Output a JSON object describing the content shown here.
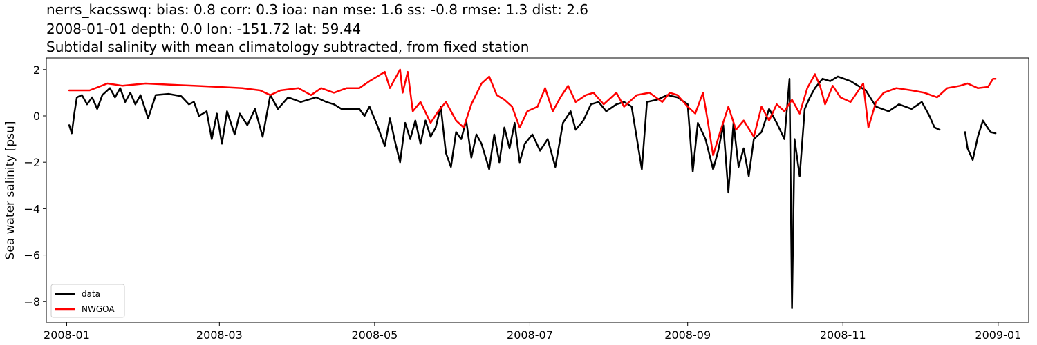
{
  "titles": [
    "nerrs_kacsswq: bias: 0.8  corr: 0.3  ioa: nan  mse: 1.6  ss: -0.8  rmse: 1.3  dist: 2.6",
    "2008-01-01 depth: 0.0 lon: -151.72 lat: 59.44",
    "Subtidal salinity with mean climatology subtracted, from fixed station"
  ],
  "chart_data": {
    "type": "line",
    "title": "Subtidal salinity with mean climatology subtracted, from fixed station",
    "xlabel": "",
    "ylabel": "Sea water salinity [psu]",
    "xlim": [
      "2007-12-24",
      "2009-01-13"
    ],
    "ylim": [
      -8.9,
      2.5
    ],
    "x_ticks": [
      "2008-01",
      "2008-03",
      "2008-05",
      "2008-07",
      "2008-09",
      "2008-11",
      "2009-01"
    ],
    "y_ticks": [
      2,
      0,
      -2,
      -4,
      -6,
      -8
    ],
    "grid": false,
    "legend": {
      "placement": "lower-left",
      "entries": [
        "data",
        "NWGOA"
      ]
    },
    "series": [
      {
        "name": "data",
        "color": "#000000",
        "points": [
          [
            "2008-01-02",
            -0.4
          ],
          [
            "2008-01-03",
            -0.75
          ],
          [
            "2008-01-04",
            0.1
          ],
          [
            "2008-01-05",
            0.8
          ],
          [
            "2008-01-07",
            0.9
          ],
          [
            "2008-01-09",
            0.5
          ],
          [
            "2008-01-11",
            0.8
          ],
          [
            "2008-01-13",
            0.3
          ],
          [
            "2008-01-15",
            0.9
          ],
          [
            "2008-01-18",
            1.2
          ],
          [
            "2008-01-20",
            0.8
          ],
          [
            "2008-01-22",
            1.2
          ],
          [
            "2008-01-24",
            0.6
          ],
          [
            "2008-01-26",
            1.0
          ],
          [
            "2008-01-28",
            0.5
          ],
          [
            "2008-01-30",
            0.9
          ],
          [
            "2008-02-02",
            -0.1
          ],
          [
            "2008-02-05",
            0.9
          ],
          [
            "2008-02-10",
            0.95
          ],
          [
            "2008-02-15",
            0.85
          ],
          [
            "2008-02-18",
            0.5
          ],
          [
            "2008-02-20",
            0.6
          ],
          [
            "2008-02-22",
            0.0
          ],
          [
            "2008-02-25",
            0.2
          ],
          [
            "2008-02-27",
            -1.0
          ],
          [
            "2008-02-29",
            0.1
          ],
          [
            "2008-03-02",
            -1.2
          ],
          [
            "2008-03-04",
            0.2
          ],
          [
            "2008-03-07",
            -0.8
          ],
          [
            "2008-03-09",
            0.1
          ],
          [
            "2008-03-12",
            -0.4
          ],
          [
            "2008-03-15",
            0.3
          ],
          [
            "2008-03-18",
            -0.9
          ],
          [
            "2008-03-21",
            0.9
          ],
          [
            "2008-03-24",
            0.3
          ],
          [
            "2008-03-28",
            0.8
          ],
          [
            "2008-04-02",
            0.6
          ],
          [
            "2008-04-08",
            0.8
          ],
          [
            "2008-04-12",
            0.6
          ],
          [
            "2008-04-15",
            0.5
          ],
          [
            "2008-04-18",
            0.3
          ],
          [
            "2008-04-25",
            0.3
          ],
          [
            "2008-04-27",
            0.0
          ],
          [
            "2008-04-29",
            0.4
          ],
          [
            "2008-05-02",
            -0.4
          ],
          [
            "2008-05-05",
            -1.3
          ],
          [
            "2008-05-07",
            -0.1
          ],
          [
            "2008-05-09",
            -1.1
          ],
          [
            "2008-05-11",
            -2.0
          ],
          [
            "2008-05-13",
            -0.3
          ],
          [
            "2008-05-15",
            -1.0
          ],
          [
            "2008-05-17",
            -0.2
          ],
          [
            "2008-05-19",
            -1.2
          ],
          [
            "2008-05-21",
            -0.2
          ],
          [
            "2008-05-23",
            -0.9
          ],
          [
            "2008-05-25",
            -0.5
          ],
          [
            "2008-05-27",
            0.4
          ],
          [
            "2008-05-29",
            -1.6
          ],
          [
            "2008-05-31",
            -2.2
          ],
          [
            "2008-06-02",
            -0.7
          ],
          [
            "2008-06-04",
            -1.0
          ],
          [
            "2008-06-06",
            -0.2
          ],
          [
            "2008-06-08",
            -1.8
          ],
          [
            "2008-06-10",
            -0.8
          ],
          [
            "2008-06-12",
            -1.2
          ],
          [
            "2008-06-15",
            -2.3
          ],
          [
            "2008-06-17",
            -0.8
          ],
          [
            "2008-06-19",
            -2.0
          ],
          [
            "2008-06-21",
            -0.5
          ],
          [
            "2008-06-23",
            -1.4
          ],
          [
            "2008-06-25",
            -0.3
          ],
          [
            "2008-06-27",
            -2.0
          ],
          [
            "2008-06-29",
            -1.2
          ],
          [
            "2008-07-02",
            -0.8
          ],
          [
            "2008-07-05",
            -1.5
          ],
          [
            "2008-07-08",
            -1.0
          ],
          [
            "2008-07-11",
            -2.2
          ],
          [
            "2008-07-14",
            -0.3
          ],
          [
            "2008-07-17",
            0.2
          ],
          [
            "2008-07-19",
            -0.6
          ],
          [
            "2008-07-22",
            -0.2
          ],
          [
            "2008-07-25",
            0.5
          ],
          [
            "2008-07-28",
            0.6
          ],
          [
            "2008-07-31",
            0.2
          ],
          [
            "2008-08-04",
            0.5
          ],
          [
            "2008-08-07",
            0.6
          ],
          [
            "2008-08-10",
            0.4
          ],
          [
            "2008-08-14",
            -2.3
          ],
          [
            "2008-08-16",
            0.6
          ],
          [
            "2008-08-20",
            0.7
          ],
          [
            "2008-08-24",
            0.9
          ],
          [
            "2008-08-28",
            0.8
          ],
          [
            "2008-09-01",
            0.5
          ],
          [
            "2008-09-03",
            -2.4
          ],
          [
            "2008-09-05",
            -0.3
          ],
          [
            "2008-09-08",
            -1.0
          ],
          [
            "2008-09-11",
            -2.3
          ],
          [
            "2008-09-13",
            -1.5
          ],
          [
            "2008-09-15",
            -0.4
          ],
          [
            "2008-09-17",
            -3.3
          ],
          [
            "2008-09-19",
            -0.3
          ],
          [
            "2008-09-21",
            -2.2
          ],
          [
            "2008-09-23",
            -1.4
          ],
          [
            "2008-09-25",
            -2.6
          ],
          [
            "2008-09-27",
            -1.0
          ],
          [
            "2008-09-30",
            -0.7
          ],
          [
            "2008-10-03",
            0.3
          ],
          [
            "2008-10-06",
            -0.3
          ],
          [
            "2008-10-09",
            -1.0
          ],
          [
            "2008-10-11",
            1.6
          ],
          [
            "2008-10-12",
            -8.3
          ],
          [
            "2008-10-13",
            -1.0
          ],
          [
            "2008-10-15",
            -2.6
          ],
          [
            "2008-10-17",
            0.3
          ],
          [
            "2008-10-19",
            0.8
          ],
          [
            "2008-10-21",
            1.2
          ],
          [
            "2008-10-24",
            1.6
          ],
          [
            "2008-10-27",
            1.5
          ],
          [
            "2008-10-30",
            1.7
          ],
          [
            "2008-11-04",
            1.5
          ],
          [
            "2008-11-07",
            1.3
          ],
          [
            "2008-11-10",
            1.1
          ],
          [
            "2008-11-14",
            0.4
          ],
          [
            "2008-11-19",
            0.2
          ],
          [
            "2008-11-23",
            0.5
          ],
          [
            "2008-11-28",
            0.3
          ],
          [
            "2008-12-02",
            0.6
          ],
          [
            "2008-12-05",
            0.0
          ],
          [
            "2008-12-07",
            -0.5
          ],
          [
            "2008-12-09",
            -0.6
          ],
          null,
          [
            "2008-12-19",
            -0.7
          ],
          [
            "2008-12-20",
            -1.4
          ],
          [
            "2008-12-22",
            -1.9
          ],
          [
            "2008-12-24",
            -0.9
          ],
          [
            "2008-12-26",
            -0.2
          ],
          [
            "2008-12-29",
            -0.7
          ],
          [
            "2008-12-31",
            -0.75
          ]
        ]
      },
      {
        "name": "NWGOA",
        "color": "#ff0000",
        "points": [
          [
            "2008-01-02",
            1.1
          ],
          [
            "2008-01-10",
            1.1
          ],
          [
            "2008-01-17",
            1.4
          ],
          [
            "2008-01-23",
            1.3
          ],
          [
            "2008-02-01",
            1.4
          ],
          [
            "2008-02-10",
            1.35
          ],
          [
            "2008-02-20",
            1.3
          ],
          [
            "2008-03-01",
            1.25
          ],
          [
            "2008-03-10",
            1.2
          ],
          [
            "2008-03-17",
            1.1
          ],
          [
            "2008-03-21",
            0.9
          ],
          [
            "2008-03-25",
            1.1
          ],
          [
            "2008-04-01",
            1.2
          ],
          [
            "2008-04-06",
            0.9
          ],
          [
            "2008-04-10",
            1.2
          ],
          [
            "2008-04-15",
            1.0
          ],
          [
            "2008-04-20",
            1.2
          ],
          [
            "2008-04-25",
            1.2
          ],
          [
            "2008-04-29",
            1.5
          ],
          [
            "2008-05-02",
            1.7
          ],
          [
            "2008-05-05",
            1.9
          ],
          [
            "2008-05-07",
            1.2
          ],
          [
            "2008-05-09",
            1.6
          ],
          [
            "2008-05-11",
            2.0
          ],
          [
            "2008-05-12",
            1.0
          ],
          [
            "2008-05-14",
            1.9
          ],
          [
            "2008-05-16",
            0.2
          ],
          [
            "2008-05-19",
            0.6
          ],
          [
            "2008-05-23",
            -0.3
          ],
          [
            "2008-05-26",
            0.2
          ],
          [
            "2008-05-29",
            0.6
          ],
          [
            "2008-06-02",
            -0.2
          ],
          [
            "2008-06-05",
            -0.5
          ],
          [
            "2008-06-08",
            0.5
          ],
          [
            "2008-06-12",
            1.4
          ],
          [
            "2008-06-15",
            1.7
          ],
          [
            "2008-06-18",
            0.9
          ],
          [
            "2008-06-21",
            0.7
          ],
          [
            "2008-06-24",
            0.4
          ],
          [
            "2008-06-27",
            -0.5
          ],
          [
            "2008-06-30",
            0.2
          ],
          [
            "2008-07-04",
            0.4
          ],
          [
            "2008-07-07",
            1.2
          ],
          [
            "2008-07-10",
            0.2
          ],
          [
            "2008-07-13",
            0.8
          ],
          [
            "2008-07-16",
            1.3
          ],
          [
            "2008-07-19",
            0.6
          ],
          [
            "2008-07-23",
            0.9
          ],
          [
            "2008-07-26",
            1.0
          ],
          [
            "2008-07-30",
            0.5
          ],
          [
            "2008-08-04",
            1.0
          ],
          [
            "2008-08-07",
            0.4
          ],
          [
            "2008-08-12",
            0.9
          ],
          [
            "2008-08-17",
            1.0
          ],
          [
            "2008-08-22",
            0.6
          ],
          [
            "2008-08-25",
            1.0
          ],
          [
            "2008-08-28",
            0.9
          ],
          [
            "2008-09-01",
            0.4
          ],
          [
            "2008-09-04",
            0.1
          ],
          [
            "2008-09-07",
            1.0
          ],
          [
            "2008-09-09",
            -0.3
          ],
          [
            "2008-09-11",
            -1.7
          ],
          [
            "2008-09-14",
            -0.6
          ],
          [
            "2008-09-17",
            0.4
          ],
          [
            "2008-09-20",
            -0.6
          ],
          [
            "2008-09-23",
            -0.2
          ],
          [
            "2008-09-27",
            -0.9
          ],
          [
            "2008-09-30",
            0.4
          ],
          [
            "2008-10-03",
            -0.2
          ],
          [
            "2008-10-06",
            0.5
          ],
          [
            "2008-10-09",
            0.2
          ],
          [
            "2008-10-12",
            0.7
          ],
          [
            "2008-10-15",
            0.1
          ],
          [
            "2008-10-18",
            1.2
          ],
          [
            "2008-10-21",
            1.8
          ],
          [
            "2008-10-23",
            1.3
          ],
          [
            "2008-10-25",
            0.5
          ],
          [
            "2008-10-28",
            1.3
          ],
          [
            "2008-10-31",
            0.8
          ],
          [
            "2008-11-04",
            0.6
          ],
          [
            "2008-11-09",
            1.4
          ],
          [
            "2008-11-11",
            -0.5
          ],
          [
            "2008-11-14",
            0.6
          ],
          [
            "2008-11-17",
            1.0
          ],
          [
            "2008-11-22",
            1.2
          ],
          [
            "2008-11-28",
            1.1
          ],
          [
            "2008-12-03",
            1.0
          ],
          [
            "2008-12-08",
            0.8
          ],
          [
            "2008-12-12",
            1.2
          ],
          [
            "2008-12-17",
            1.3
          ],
          [
            "2008-12-20",
            1.4
          ],
          [
            "2008-12-24",
            1.2
          ],
          [
            "2008-12-28",
            1.25
          ],
          [
            "2008-12-30",
            1.6
          ],
          [
            "2008-12-31",
            1.6
          ]
        ]
      }
    ]
  }
}
